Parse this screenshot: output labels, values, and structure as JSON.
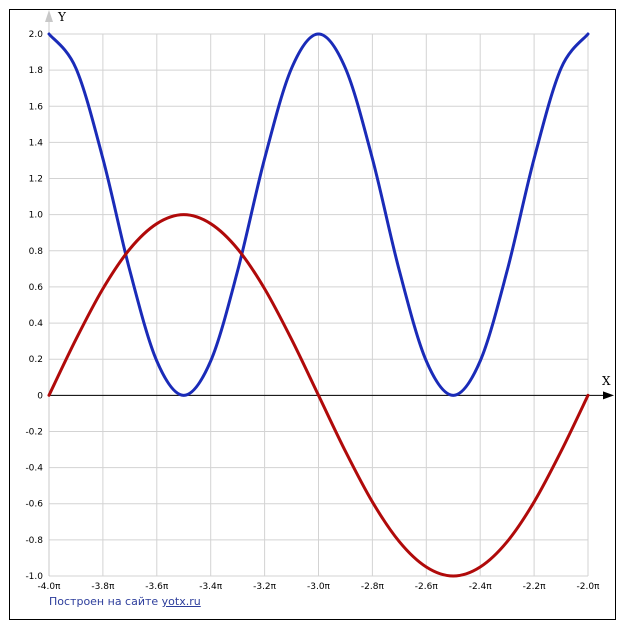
{
  "chart_data": {
    "type": "line",
    "x_axis_label": "X",
    "y_axis_label": "Y",
    "xlim": [
      -4.0,
      -2.0
    ],
    "ylim": [
      -1.0,
      2.0
    ],
    "x_unit": "π",
    "grid": true,
    "x_ticks": [
      "-4.0π",
      "-3.8π",
      "-3.6π",
      "-3.4π",
      "-3.2π",
      "-3.0π",
      "-2.8π",
      "-2.6π",
      "-2.4π",
      "-2.2π",
      "-2.0π"
    ],
    "y_ticks": [
      "2.0",
      "1.8",
      "1.6",
      "1.4",
      "1.2",
      "1.0",
      "0.8",
      "0.6",
      "0.4",
      "0.2",
      "0",
      "-0.2",
      "-0.4",
      "-0.6",
      "-0.8",
      "-1.0"
    ],
    "series": [
      {
        "color": "#1a2bb8",
        "x": [
          -4.0,
          -3.9,
          -3.8,
          -3.7,
          -3.6,
          -3.5,
          -3.4,
          -3.3,
          -3.2,
          -3.1,
          -3.0,
          -2.9,
          -2.8,
          -2.7,
          -2.6,
          -2.5,
          -2.4,
          -2.3,
          -2.2,
          -2.1,
          -2.0
        ],
        "y": [
          2.0,
          1.81,
          1.31,
          0.69,
          0.19,
          0.0,
          0.19,
          0.69,
          1.31,
          1.81,
          2.0,
          1.81,
          1.31,
          0.69,
          0.19,
          0.0,
          0.19,
          0.69,
          1.31,
          1.81,
          2.0
        ]
      },
      {
        "color": "#b00a0a",
        "x": [
          -4.0,
          -3.9,
          -3.8,
          -3.7,
          -3.6,
          -3.5,
          -3.4,
          -3.3,
          -3.2,
          -3.1,
          -3.0,
          -2.9,
          -2.8,
          -2.7,
          -2.6,
          -2.5,
          -2.4,
          -2.3,
          -2.2,
          -2.1,
          -2.0
        ],
        "y": [
          0.0,
          0.31,
          0.59,
          0.81,
          0.95,
          1.0,
          0.95,
          0.81,
          0.59,
          0.31,
          0.0,
          -0.31,
          -0.59,
          -0.81,
          -0.95,
          -1.0,
          -0.95,
          -0.81,
          -0.59,
          -0.31,
          0.0
        ]
      }
    ]
  },
  "credit": {
    "text": "Построен на сайте",
    "link": "yotx.ru"
  },
  "colors": {
    "grid": "#d3d3d3",
    "axis": "#000000",
    "credit": "#2c3d9b"
  }
}
